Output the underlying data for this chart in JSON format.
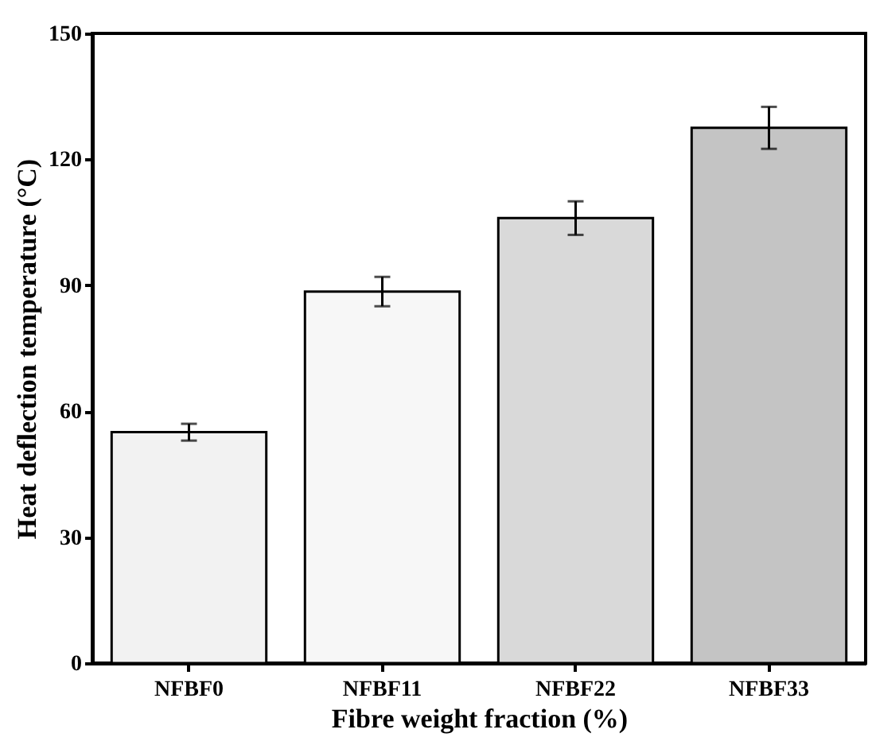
{
  "chart_data": {
    "type": "bar",
    "xlabel": "Fibre weight fraction (%)",
    "ylabel": "Heat deflection temperature (°C)",
    "categories": [
      "NFBF0",
      "NFBF11",
      "NFBF22",
      "NFBF33"
    ],
    "values": [
      55,
      88.5,
      106,
      127.5
    ],
    "errors": [
      2,
      3.5,
      4,
      5
    ],
    "colors": [
      "#f2f2f2",
      "#f7f7f7",
      "#d9d9d9",
      "#c4c4c4"
    ],
    "ylim": [
      0,
      150
    ],
    "yticks": [
      0,
      30,
      60,
      90,
      120,
      150
    ],
    "grid": false
  }
}
